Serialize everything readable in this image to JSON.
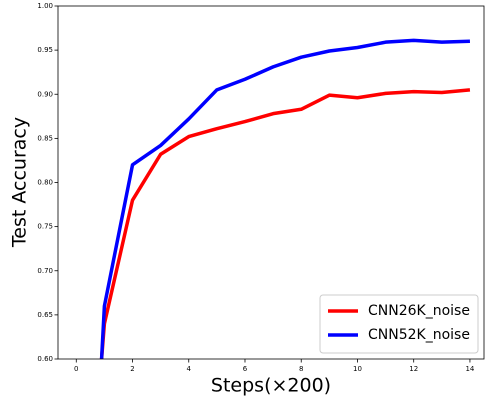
{
  "chart_data": {
    "type": "line",
    "xlabel": "Steps(×200)",
    "ylabel": "Test Accuracy",
    "x": [
      0.9,
      1,
      2,
      3,
      4,
      5,
      6,
      7,
      8,
      9,
      10,
      11,
      12,
      13,
      14
    ],
    "series": [
      {
        "name": "CNN26K_noise",
        "color": "#ff0000",
        "values": [
          0.6,
          0.64,
          0.78,
          0.832,
          0.852,
          0.861,
          0.869,
          0.878,
          0.883,
          0.899,
          0.896,
          0.901,
          0.903,
          0.902,
          0.905
        ]
      },
      {
        "name": "CNN52K_noise",
        "color": "#0000ff",
        "values": [
          0.6,
          0.66,
          0.82,
          0.842,
          0.872,
          0.905,
          0.917,
          0.931,
          0.942,
          0.949,
          0.953,
          0.959,
          0.961,
          0.959,
          0.96
        ]
      }
    ],
    "xlim": [
      -0.65,
      14.5
    ],
    "xticks": [
      0,
      2,
      4,
      6,
      8,
      10,
      12,
      14
    ],
    "ylim": [
      0.6,
      1.0
    ],
    "yticks": [
      {
        "value": 0.6,
        "label": "0.60"
      },
      {
        "value": 0.65,
        "label": "0.65"
      },
      {
        "value": 0.7,
        "label": "0.70"
      },
      {
        "value": 0.75,
        "label": "0.75"
      },
      {
        "value": 0.8,
        "label": "0.80"
      },
      {
        "value": 0.85,
        "label": "0.85"
      },
      {
        "value": 0.9,
        "label": "0.90"
      },
      {
        "value": 0.95,
        "label": "0.95"
      },
      {
        "value": 1.0,
        "label": "1.00"
      }
    ],
    "legend": "lower right"
  }
}
